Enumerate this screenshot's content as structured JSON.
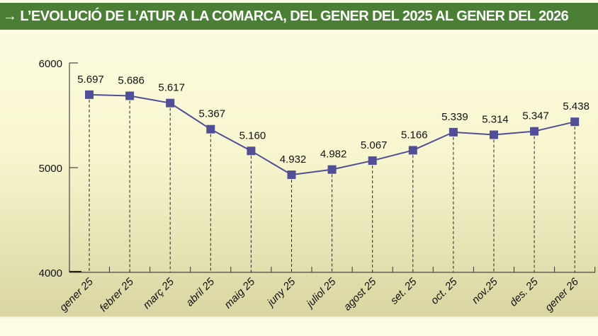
{
  "title": "→ L’EVOLUCIÓ DE L’ATUR A LA COMARCA, DEL GENER DEL 2025 AL GENER DEL 2026",
  "colors": {
    "header": "#4b7f36",
    "series": "#4f4e97"
  },
  "chart_data": {
    "type": "line",
    "title": "→ L’EVOLUCIÓ DE L’ATUR A LA COMARCA, DEL GENER DEL 2025 AL GENER DEL 2026",
    "categories": [
      "gener 25",
      "febrer 25",
      "març 25",
      "abril 25",
      "maig 25",
      "juny 25",
      "juliol 25",
      "agost 25",
      "set. 25",
      "oct. 25",
      "nov.25",
      "des. 25",
      "gener 26"
    ],
    "values": [
      5697,
      5686,
      5617,
      5367,
      5160,
      4932,
      4982,
      5067,
      5166,
      5339,
      5314,
      5347,
      5438
    ],
    "data_labels": [
      "5.697",
      "5.686",
      "5.617",
      "5.367",
      "5.160",
      "4.932",
      "4.982",
      "5.067",
      "5.166",
      "5.339",
      "5.314",
      "5.347",
      "5.438"
    ],
    "ylim": [
      4000,
      6000
    ],
    "yticks": [
      "4000",
      "5000",
      "6000"
    ],
    "xlabel": "",
    "ylabel": "",
    "grid": false,
    "marker": "square"
  }
}
